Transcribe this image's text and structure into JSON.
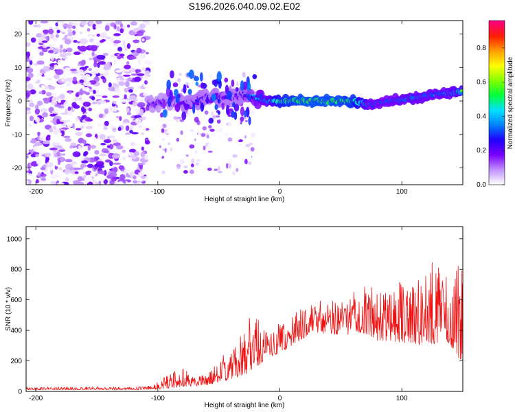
{
  "figure_title": "S196.2026.040.09.02.E02",
  "chart_data": [
    {
      "type": "heatmap",
      "title": "S196.2026.040.09.02.E02",
      "xlabel": "Height of straight line (km)",
      "ylabel": "Frequency (Hz)",
      "xlim": [
        -208,
        150
      ],
      "ylim": [
        -25,
        24
      ],
      "xticks": [
        -200,
        -100,
        0,
        100
      ],
      "yticks": [
        -20,
        -10,
        0,
        10,
        20
      ],
      "colorbar": {
        "label": "Normalized spectral amplitude",
        "range": [
          0.0,
          0.96
        ],
        "ticks": [
          0.0,
          0.2,
          0.4,
          0.6,
          0.8
        ],
        "colors": [
          "#ffffff",
          "#c090ff",
          "#7a00ff",
          "#2000ff",
          "#0080ff",
          "#00e0ff",
          "#00ff40",
          "#80ff00",
          "#ffff00",
          "#ffa000",
          "#ff2000",
          "#ff0080"
        ]
      },
      "ridge": {
        "description_points_x": [
          -108,
          -90,
          -75,
          -60,
          -45,
          -30,
          -20,
          -10,
          0,
          20,
          40,
          60,
          75,
          90,
          110,
          130,
          150
        ],
        "frequency_hz": [
          -1,
          0,
          -1,
          1,
          1,
          2,
          1,
          0,
          0,
          0,
          0,
          0,
          -1,
          0,
          1,
          2,
          3
        ],
        "amplitude": [
          0.25,
          0.25,
          0.3,
          0.3,
          0.3,
          0.3,
          0.45,
          0.55,
          0.8,
          0.9,
          0.9,
          0.85,
          0.5,
          0.5,
          0.55,
          0.5,
          0.6
        ]
      },
      "noise_region_x": [
        -208,
        -108
      ]
    },
    {
      "type": "line",
      "xlabel": "Height of straight line (km)",
      "ylabel": "SNR (10 * v/v)",
      "xlim": [
        -208,
        150
      ],
      "ylim": [
        0,
        1080
      ],
      "xticks": [
        -200,
        -100,
        0,
        100
      ],
      "yticks": [
        0,
        200,
        400,
        600,
        800,
        1000
      ],
      "line_color": "#ee1111",
      "series": [
        {
          "name": "SNR",
          "x": [
            -208,
            -180,
            -150,
            -120,
            -105,
            -90,
            -80,
            -70,
            -60,
            -50,
            -40,
            -30,
            -20,
            -10,
            0,
            10,
            20,
            30,
            40,
            50,
            60,
            70,
            80,
            90,
            100,
            110,
            120,
            130,
            140,
            148
          ],
          "envelope_low": [
            10,
            10,
            10,
            10,
            12,
            20,
            30,
            35,
            40,
            60,
            80,
            100,
            150,
            220,
            250,
            300,
            350,
            370,
            380,
            360,
            380,
            380,
            330,
            330,
            320,
            300,
            300,
            320,
            300,
            200
          ],
          "envelope_high": [
            28,
            30,
            30,
            30,
            40,
            120,
            160,
            100,
            140,
            200,
            300,
            400,
            580,
            380,
            450,
            500,
            570,
            600,
            600,
            600,
            650,
            700,
            700,
            720,
            720,
            700,
            780,
            920,
            700,
            1060
          ]
        }
      ]
    }
  ]
}
